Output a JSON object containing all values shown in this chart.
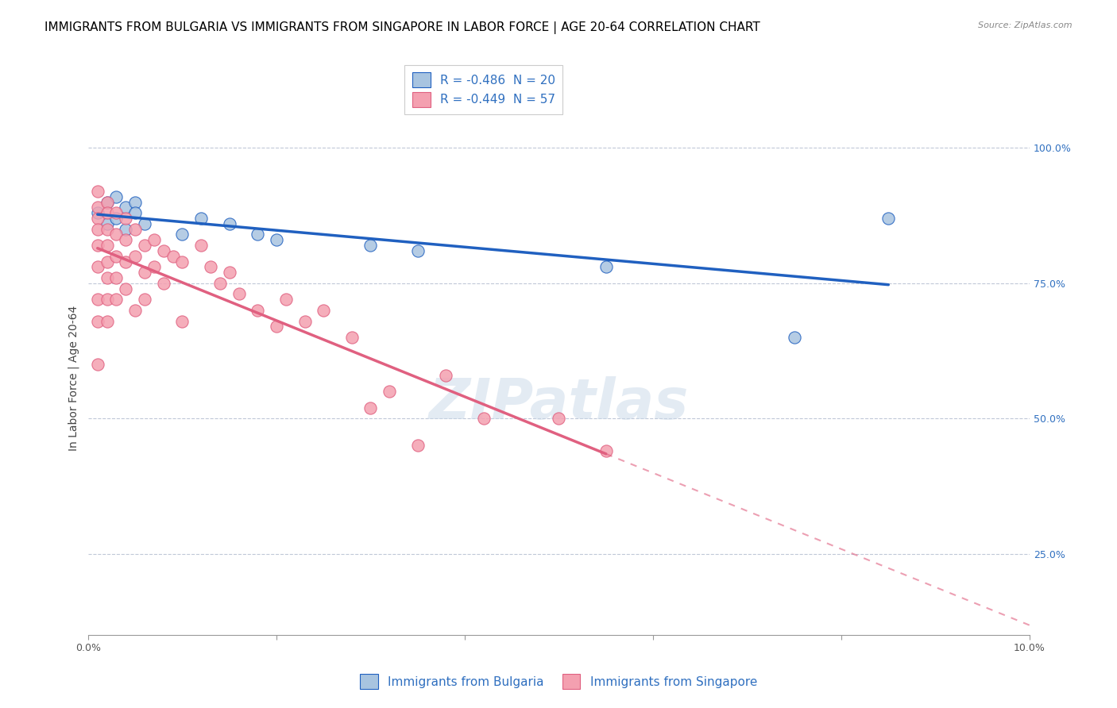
{
  "title": "IMMIGRANTS FROM BULGARIA VS IMMIGRANTS FROM SINGAPORE IN LABOR FORCE | AGE 20-64 CORRELATION CHART",
  "source": "Source: ZipAtlas.com",
  "xlabel": "",
  "ylabel": "In Labor Force | Age 20-64",
  "xlim": [
    0.0,
    0.1
  ],
  "ylim": [
    0.1,
    1.05
  ],
  "yticks": [
    0.25,
    0.5,
    0.75,
    1.0
  ],
  "ytick_labels": [
    "25.0%",
    "50.0%",
    "75.0%",
    "100.0%"
  ],
  "xticks": [
    0.0,
    0.02,
    0.04,
    0.06,
    0.08,
    0.1
  ],
  "xtick_labels": [
    "0.0%",
    "",
    "",
    "",
    "",
    "10.0%"
  ],
  "blue_R": -0.486,
  "blue_N": 20,
  "pink_R": -0.449,
  "pink_N": 57,
  "blue_color": "#a8c4e0",
  "pink_color": "#f4a0b0",
  "blue_line_color": "#2060c0",
  "pink_line_color": "#e06080",
  "legend_label_blue": "Immigrants from Bulgaria",
  "legend_label_pink": "Immigrants from Singapore",
  "blue_scatter_x": [
    0.001,
    0.002,
    0.002,
    0.003,
    0.003,
    0.004,
    0.004,
    0.005,
    0.005,
    0.006,
    0.01,
    0.012,
    0.015,
    0.018,
    0.02,
    0.03,
    0.035,
    0.055,
    0.075,
    0.085
  ],
  "blue_scatter_y": [
    0.88,
    0.9,
    0.86,
    0.87,
    0.91,
    0.89,
    0.85,
    0.9,
    0.88,
    0.86,
    0.84,
    0.87,
    0.86,
    0.84,
    0.83,
    0.82,
    0.81,
    0.78,
    0.65,
    0.87
  ],
  "pink_scatter_x": [
    0.001,
    0.001,
    0.001,
    0.001,
    0.001,
    0.001,
    0.001,
    0.001,
    0.001,
    0.002,
    0.002,
    0.002,
    0.002,
    0.002,
    0.002,
    0.002,
    0.002,
    0.003,
    0.003,
    0.003,
    0.003,
    0.003,
    0.004,
    0.004,
    0.004,
    0.004,
    0.005,
    0.005,
    0.005,
    0.006,
    0.006,
    0.006,
    0.007,
    0.007,
    0.008,
    0.008,
    0.009,
    0.01,
    0.01,
    0.012,
    0.013,
    0.014,
    0.015,
    0.016,
    0.018,
    0.02,
    0.021,
    0.023,
    0.025,
    0.028,
    0.03,
    0.032,
    0.035,
    0.038,
    0.042,
    0.05,
    0.055
  ],
  "pink_scatter_y": [
    0.92,
    0.89,
    0.87,
    0.85,
    0.82,
    0.78,
    0.72,
    0.68,
    0.6,
    0.9,
    0.88,
    0.85,
    0.82,
    0.79,
    0.76,
    0.72,
    0.68,
    0.88,
    0.84,
    0.8,
    0.76,
    0.72,
    0.87,
    0.83,
    0.79,
    0.74,
    0.85,
    0.8,
    0.7,
    0.82,
    0.77,
    0.72,
    0.83,
    0.78,
    0.81,
    0.75,
    0.8,
    0.79,
    0.68,
    0.82,
    0.78,
    0.75,
    0.77,
    0.73,
    0.7,
    0.67,
    0.72,
    0.68,
    0.7,
    0.65,
    0.52,
    0.55,
    0.45,
    0.58,
    0.5,
    0.5,
    0.44
  ],
  "watermark": "ZIPatlas",
  "title_fontsize": 11,
  "axis_label_fontsize": 10,
  "tick_fontsize": 9,
  "legend_fontsize": 11
}
